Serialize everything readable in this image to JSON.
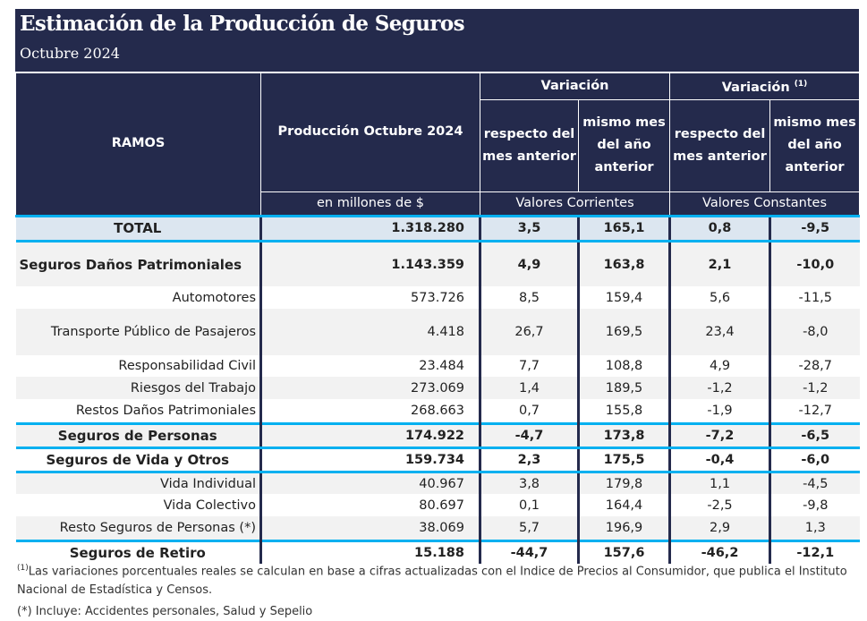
{
  "title": "Estimación de la Producción de Seguros",
  "subtitle": "Octubre 2024",
  "header": {
    "ramos": "RAMOS",
    "produccion": "Producción Octubre 2024",
    "variacion": "Variación",
    "variacion_real": "Variación",
    "variacion_real_note": "(1)",
    "respecto": "respecto del mes anterior",
    "mismo": "mismo mes del año anterior",
    "unidad": "en millones de $",
    "corrientes": "Valores Corrientes",
    "constantes": "Valores Constantes"
  },
  "rows": [
    {
      "label": "TOTAL",
      "prod": "1.318.280",
      "v1": "3,5",
      "v2": "165,1",
      "v3": "0,8",
      "v4": "-9,5",
      "style": "total"
    },
    {
      "label": "Seguros Daños Patrimoniales",
      "prod": "1.143.359",
      "v1": "4,9",
      "v2": "163,8",
      "v3": "2,1",
      "v4": "-10,0",
      "style": "section-left"
    },
    {
      "label": "Automotores",
      "prod": "573.726",
      "v1": "8,5",
      "v2": "159,4",
      "v3": "5,6",
      "v4": "-11,5",
      "style": "item"
    },
    {
      "label": "Transporte Público de Pasajeros",
      "prod": "4.418",
      "v1": "26,7",
      "v2": "169,5",
      "v3": "23,4",
      "v4": "-8,0",
      "style": "item"
    },
    {
      "label": "Responsabilidad Civil",
      "prod": "23.484",
      "v1": "7,7",
      "v2": "108,8",
      "v3": "4,9",
      "v4": "-28,7",
      "style": "item"
    },
    {
      "label": "Riesgos del Trabajo",
      "prod": "273.069",
      "v1": "1,4",
      "v2": "189,5",
      "v3": "-1,2",
      "v4": "-1,2",
      "style": "item"
    },
    {
      "label": "Restos Daños Patrimoniales",
      "prod": "268.663",
      "v1": "0,7",
      "v2": "155,8",
      "v3": "-1,9",
      "v4": "-12,7",
      "style": "item"
    },
    {
      "label": "Seguros de Personas",
      "prod": "174.922",
      "v1": "-4,7",
      "v2": "173,8",
      "v3": "-7,2",
      "v4": "-6,5",
      "style": "section"
    },
    {
      "label": "Seguros de Vida y Otros",
      "prod": "159.734",
      "v1": "2,3",
      "v2": "175,5",
      "v3": "-0,4",
      "v4": "-6,0",
      "style": "section"
    },
    {
      "label": "Vida Individual",
      "prod": "40.967",
      "v1": "3,8",
      "v2": "179,8",
      "v3": "1,1",
      "v4": "-4,5",
      "style": "item"
    },
    {
      "label": "Vida Colectivo",
      "prod": "80.697",
      "v1": "0,1",
      "v2": "164,4",
      "v3": "-2,5",
      "v4": "-9,8",
      "style": "item"
    },
    {
      "label": "Resto Seguros de Personas (*)",
      "prod": "38.069",
      "v1": "5,7",
      "v2": "196,9",
      "v3": "2,9",
      "v4": "1,3",
      "style": "item"
    },
    {
      "label": "Seguros de Retiro",
      "prod": "15.188",
      "v1": "-44,7",
      "v2": "157,6",
      "v3": "-46,2",
      "v4": "-12,1",
      "style": "section"
    }
  ],
  "footnotes": {
    "note1_mark": "(1)",
    "note1": "Las variaciones porcentuales reales se calculan en base a cifras actualizadas con  el Indice de Precios al Consumidor, que publica el Instituto Nacional de Estadística y  Censos.",
    "note2": "(*) Incluye: Accidentes personales, Salud y Sepelio"
  },
  "colors": {
    "navy": "#242a4c",
    "blue_rule": "#00b0f0",
    "total_bg": "#dce6f0",
    "stripe": "#f2f2f2"
  }
}
